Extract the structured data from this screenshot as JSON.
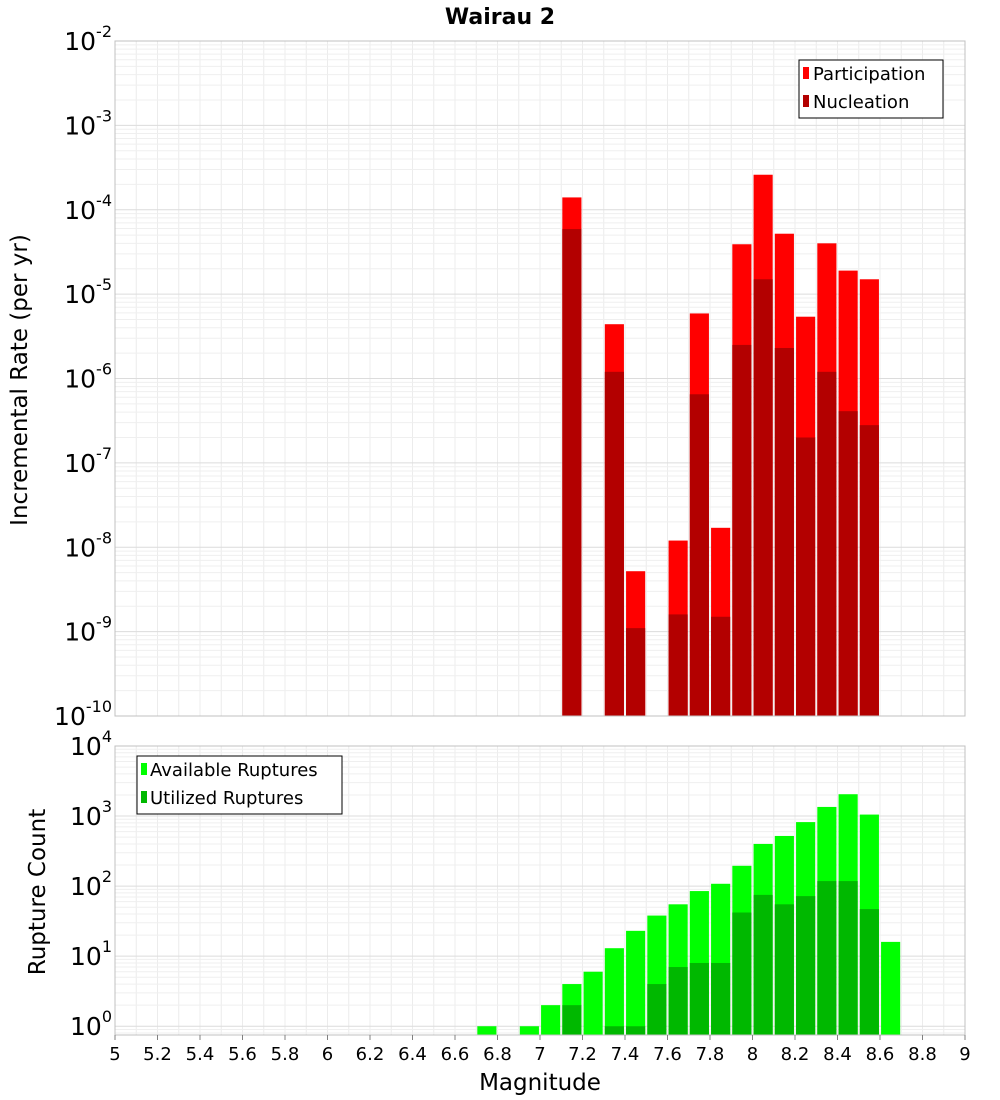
{
  "title": "Wairau 2",
  "colors": {
    "participation": "#ff0000",
    "nucleation": "#b30000",
    "available": "#00ff00",
    "utilized": "#00b800",
    "grid": "#e6e6e6",
    "frame": "#c0c0c0"
  },
  "chart_data": [
    {
      "type": "bar",
      "title": "Wairau 2",
      "xlabel": "",
      "ylabel": "Incremental Rate (per yr)",
      "ylog": true,
      "ylim": [
        1e-10,
        0.01
      ],
      "xlim": [
        5,
        9
      ],
      "grid": true,
      "legend_position": "top-right",
      "yticks": [
        {
          "base": "10",
          "exp": "-2",
          "value": 0.01
        },
        {
          "base": "10",
          "exp": "-3",
          "value": 0.001
        },
        {
          "base": "10",
          "exp": "-4",
          "value": 0.0001
        },
        {
          "base": "10",
          "exp": "-5",
          "value": 1e-05
        },
        {
          "base": "10",
          "exp": "-6",
          "value": 1e-06
        },
        {
          "base": "10",
          "exp": "-7",
          "value": 1e-07
        },
        {
          "base": "10",
          "exp": "-8",
          "value": 1e-08
        },
        {
          "base": "10",
          "exp": "-9",
          "value": 1e-09
        },
        {
          "base": "10",
          "exp": "-10",
          "value": 1e-10
        }
      ],
      "series": [
        {
          "name": "Participation",
          "color": "#ff0000",
          "points": [
            {
              "x": 7.15,
              "y": 0.00014
            },
            {
              "x": 7.35,
              "y": 4.4e-06
            },
            {
              "x": 7.45,
              "y": 5.2e-09
            },
            {
              "x": 7.65,
              "y": 1.2e-08
            },
            {
              "x": 7.75,
              "y": 5.9e-06
            },
            {
              "x": 7.85,
              "y": 1.7e-08
            },
            {
              "x": 7.95,
              "y": 3.9e-05
            },
            {
              "x": 8.05,
              "y": 0.00026
            },
            {
              "x": 8.15,
              "y": 5.2e-05
            },
            {
              "x": 8.25,
              "y": 5.4e-06
            },
            {
              "x": 8.35,
              "y": 4e-05
            },
            {
              "x": 8.45,
              "y": 1.9e-05
            },
            {
              "x": 8.55,
              "y": 1.5e-05
            }
          ]
        },
        {
          "name": "Nucleation",
          "color": "#b30000",
          "points": [
            {
              "x": 7.15,
              "y": 5.9e-05
            },
            {
              "x": 7.35,
              "y": 1.2e-06
            },
            {
              "x": 7.45,
              "y": 1.1e-09
            },
            {
              "x": 7.65,
              "y": 1.6e-09
            },
            {
              "x": 7.75,
              "y": 6.5e-07
            },
            {
              "x": 7.85,
              "y": 1.5e-09
            },
            {
              "x": 7.95,
              "y": 2.5e-06
            },
            {
              "x": 8.05,
              "y": 1.5e-05
            },
            {
              "x": 8.15,
              "y": 2.3e-06
            },
            {
              "x": 8.25,
              "y": 2e-07
            },
            {
              "x": 8.35,
              "y": 1.2e-06
            },
            {
              "x": 8.45,
              "y": 4.1e-07
            },
            {
              "x": 8.55,
              "y": 2.8e-07
            }
          ]
        }
      ]
    },
    {
      "type": "bar",
      "title": "",
      "xlabel": "Magnitude",
      "ylabel": "Rupture Count",
      "ylog": true,
      "ylim": [
        0.75,
        10000
      ],
      "xlim": [
        5,
        9
      ],
      "grid": true,
      "legend_position": "top-left",
      "xticks": [
        "5",
        "5.2",
        "5.4",
        "5.6",
        "5.8",
        "6",
        "6.2",
        "6.4",
        "6.6",
        "6.8",
        "7",
        "7.2",
        "7.4",
        "7.6",
        "7.8",
        "8",
        "8.2",
        "8.4",
        "8.6",
        "8.8",
        "9"
      ],
      "yticks": [
        {
          "base": "10",
          "exp": "4",
          "value": 10000
        },
        {
          "base": "10",
          "exp": "3",
          "value": 1000
        },
        {
          "base": "10",
          "exp": "2",
          "value": 100
        },
        {
          "base": "10",
          "exp": "1",
          "value": 10
        },
        {
          "base": "10",
          "exp": "0",
          "value": 1
        }
      ],
      "series": [
        {
          "name": "Available Ruptures",
          "color": "#00ff00",
          "points": [
            {
              "x": 6.75,
              "y": 1
            },
            {
              "x": 6.95,
              "y": 1
            },
            {
              "x": 7.05,
              "y": 2
            },
            {
              "x": 7.15,
              "y": 4
            },
            {
              "x": 7.25,
              "y": 6
            },
            {
              "x": 7.35,
              "y": 13
            },
            {
              "x": 7.45,
              "y": 23
            },
            {
              "x": 7.55,
              "y": 38
            },
            {
              "x": 7.65,
              "y": 55
            },
            {
              "x": 7.75,
              "y": 85
            },
            {
              "x": 7.85,
              "y": 108
            },
            {
              "x": 7.95,
              "y": 195
            },
            {
              "x": 8.05,
              "y": 400
            },
            {
              "x": 8.15,
              "y": 520
            },
            {
              "x": 8.25,
              "y": 820
            },
            {
              "x": 8.35,
              "y": 1350
            },
            {
              "x": 8.45,
              "y": 2050
            },
            {
              "x": 8.55,
              "y": 1050
            },
            {
              "x": 8.65,
              "y": 16
            }
          ]
        },
        {
          "name": "Utilized Ruptures",
          "color": "#00b800",
          "points": [
            {
              "x": 7.15,
              "y": 2
            },
            {
              "x": 7.35,
              "y": 1
            },
            {
              "x": 7.45,
              "y": 1
            },
            {
              "x": 7.55,
              "y": 4
            },
            {
              "x": 7.65,
              "y": 7
            },
            {
              "x": 7.75,
              "y": 8
            },
            {
              "x": 7.85,
              "y": 8
            },
            {
              "x": 7.95,
              "y": 42
            },
            {
              "x": 8.05,
              "y": 75
            },
            {
              "x": 8.15,
              "y": 55
            },
            {
              "x": 8.25,
              "y": 72
            },
            {
              "x": 8.35,
              "y": 118
            },
            {
              "x": 8.45,
              "y": 118
            },
            {
              "x": 8.55,
              "y": 47
            }
          ]
        }
      ]
    }
  ]
}
